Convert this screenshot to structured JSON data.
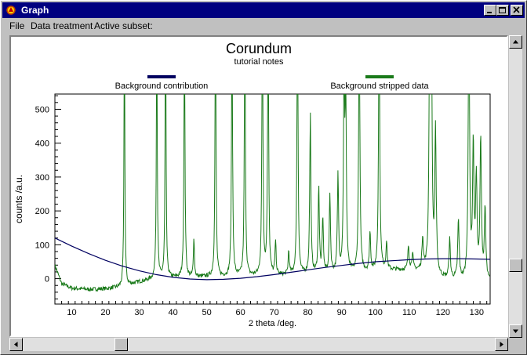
{
  "window": {
    "title": "Graph",
    "buttons": [
      "minimize",
      "maximize",
      "close"
    ]
  },
  "menu": {
    "items": [
      "File",
      "Data treatment",
      "Active subset:"
    ]
  },
  "chart_data": {
    "type": "line",
    "title": "Corundum",
    "subtitle": "tutorial notes",
    "xlabel": "2 theta /deg.",
    "ylabel": "counts /a.u.",
    "xlim": [
      5,
      134
    ],
    "ylim": [
      -75,
      545
    ],
    "xticks": [
      10,
      20,
      30,
      40,
      50,
      60,
      70,
      80,
      90,
      100,
      110,
      120,
      130
    ],
    "yticks": [
      0,
      100,
      200,
      300,
      400,
      500
    ],
    "legend_position": "top",
    "series": [
      {
        "name": "Background contribution",
        "color": "#000060",
        "x": [
          5,
          10,
          15,
          20,
          25,
          30,
          35,
          40,
          45,
          50,
          55,
          60,
          65,
          70,
          75,
          80,
          85,
          90,
          95,
          100,
          105,
          110,
          115,
          120,
          125,
          130,
          134
        ],
        "y": [
          120,
          96,
          74,
          54,
          37,
          23,
          12,
          4,
          -1,
          -3,
          -2,
          1,
          6,
          12,
          19,
          26,
          33,
          39,
          45,
          50,
          53,
          56,
          58,
          59,
          59,
          58,
          57
        ]
      },
      {
        "name": "Background stripped data",
        "color": "#1a7a1a",
        "baseline": {
          "x": [
            5,
            7,
            10,
            15,
            20,
            25,
            30,
            35,
            40,
            45,
            50,
            55,
            60,
            65,
            70,
            75,
            80,
            85,
            90,
            95,
            100,
            105,
            110,
            115,
            120,
            125,
            130,
            134
          ],
          "y": [
            40,
            -15,
            -28,
            -32,
            -30,
            -25,
            -10,
            0,
            2,
            3,
            5,
            5,
            6,
            7,
            8,
            10,
            12,
            14,
            15,
            18,
            20,
            25,
            25,
            20,
            0,
            -5,
            -15,
            -10
          ]
        },
        "peaks": [
          {
            "x": 25.6,
            "y": 545
          },
          {
            "x": 35.2,
            "y": 545
          },
          {
            "x": 37.8,
            "y": 545
          },
          {
            "x": 43.4,
            "y": 545
          },
          {
            "x": 46.2,
            "y": 90
          },
          {
            "x": 52.6,
            "y": 545
          },
          {
            "x": 57.5,
            "y": 545
          },
          {
            "x": 61.3,
            "y": 545
          },
          {
            "x": 66.5,
            "y": 545
          },
          {
            "x": 68.2,
            "y": 545
          },
          {
            "x": 70.4,
            "y": 80
          },
          {
            "x": 74.3,
            "y": 60
          },
          {
            "x": 76.9,
            "y": 545
          },
          {
            "x": 80.7,
            "y": 350
          },
          {
            "x": 83.2,
            "y": 200
          },
          {
            "x": 84.4,
            "y": 130
          },
          {
            "x": 86.5,
            "y": 180
          },
          {
            "x": 88.9,
            "y": 220
          },
          {
            "x": 90.7,
            "y": 410
          },
          {
            "x": 91.2,
            "y": 380
          },
          {
            "x": 95.2,
            "y": 545
          },
          {
            "x": 98.4,
            "y": 100
          },
          {
            "x": 101.1,
            "y": 545
          },
          {
            "x": 103.3,
            "y": 80
          },
          {
            "x": 109.8,
            "y": 75
          },
          {
            "x": 111.0,
            "y": 60
          },
          {
            "x": 114.0,
            "y": 90
          },
          {
            "x": 116.1,
            "y": 545
          },
          {
            "x": 116.6,
            "y": 440
          },
          {
            "x": 117.8,
            "y": 310
          },
          {
            "x": 122.0,
            "y": 80
          },
          {
            "x": 124.6,
            "y": 120
          },
          {
            "x": 127.7,
            "y": 545
          },
          {
            "x": 129.0,
            "y": 270
          },
          {
            "x": 129.9,
            "y": 200
          },
          {
            "x": 131.2,
            "y": 290
          },
          {
            "x": 132.5,
            "y": 140
          }
        ]
      }
    ]
  },
  "scrollbars": {
    "vertical": {
      "position": 0.8
    },
    "horizontal": {
      "position": 0.2
    }
  }
}
